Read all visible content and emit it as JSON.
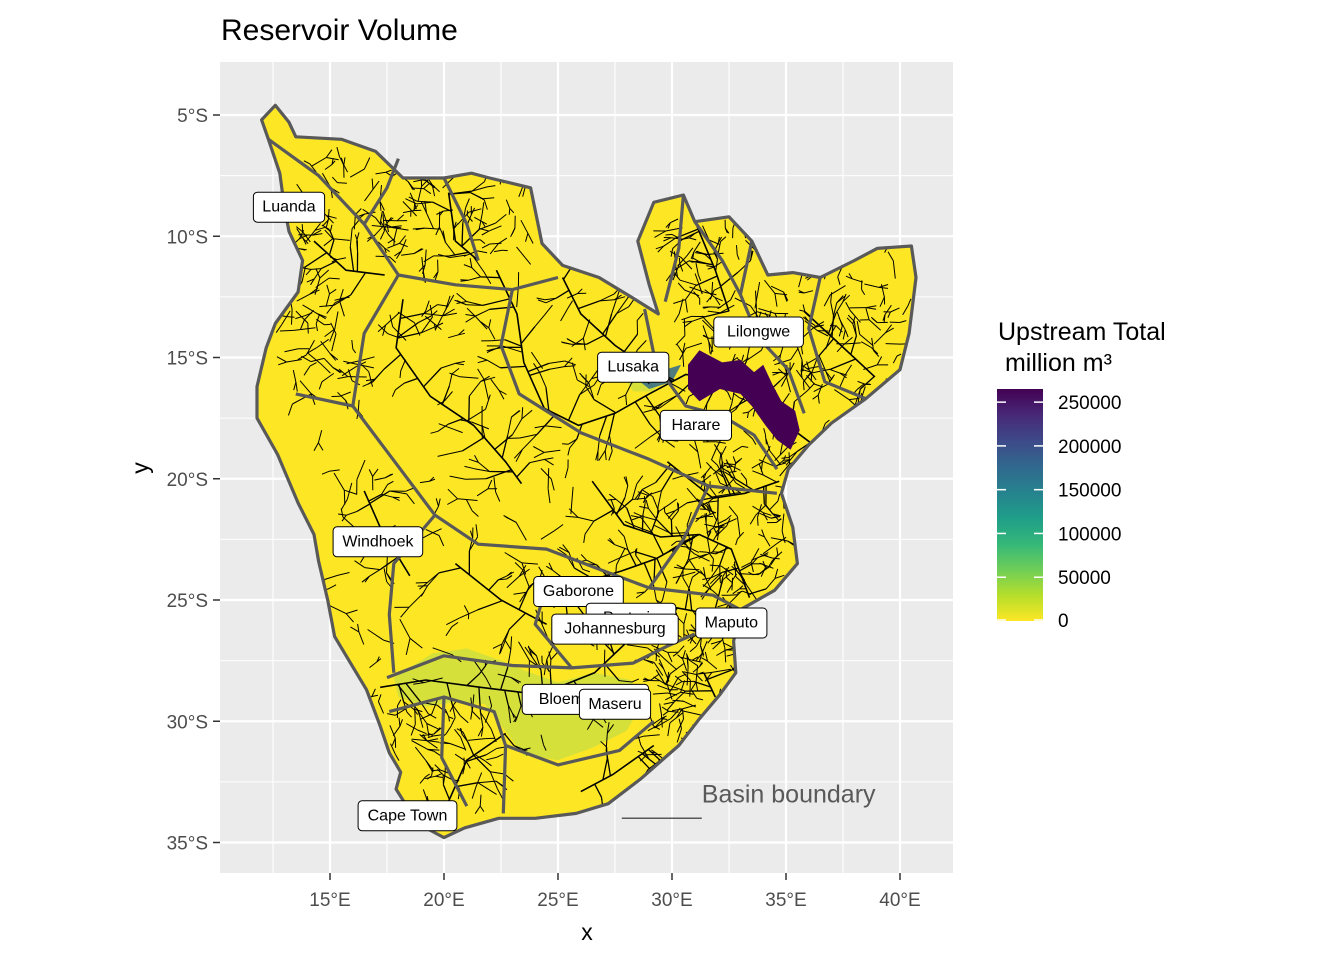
{
  "title": "Reservoir Volume",
  "axes": {
    "x_title": "x",
    "y_title": "y",
    "x_ticks": [
      {
        "lon": 15,
        "label": "15°E"
      },
      {
        "lon": 20,
        "label": "20°E"
      },
      {
        "lon": 25,
        "label": "25°E"
      },
      {
        "lon": 30,
        "label": "30°E"
      },
      {
        "lon": 35,
        "label": "35°E"
      },
      {
        "lon": 40,
        "label": "40°E"
      }
    ],
    "y_ticks": [
      {
        "lat": -5,
        "label": "5°S"
      },
      {
        "lat": -10,
        "label": "10°S"
      },
      {
        "lat": -15,
        "label": "15°S"
      },
      {
        "lat": -20,
        "label": "20°S"
      },
      {
        "lat": -25,
        "label": "25°S"
      },
      {
        "lat": -30,
        "label": "30°S"
      },
      {
        "lat": -35,
        "label": "35°S"
      }
    ],
    "xlim": [
      10.5,
      42.2
    ],
    "ylim": [
      -36.3,
      -3.1
    ]
  },
  "colors": {
    "panel": "#EBEBEB",
    "grid": "#FFFFFF",
    "land_low": "#FDE725",
    "land_mid": "#D0DF3E",
    "basin_border": "#595959",
    "river": "#000000",
    "high_volume": "#440154",
    "mid_volume": "#31688E"
  },
  "legend": {
    "title_line1": "Upstream Total",
    "title_line2": " million m³",
    "ticks": [
      "250000",
      "200000",
      "150000",
      "100000",
      "50000",
      "0"
    ],
    "tick_values": [
      250000,
      200000,
      150000,
      100000,
      50000,
      0
    ],
    "max": 265000,
    "gradient": [
      "#FDE725",
      "#B5DE2B",
      "#6ECE58",
      "#35B779",
      "#1F9E89",
      "#26828E",
      "#31688E",
      "#3E4989",
      "#482878",
      "#440154"
    ]
  },
  "annotation": {
    "label": "Basin boundary",
    "lon": 27.8,
    "lat": -33.55
  },
  "cities": [
    {
      "name": "Luanda",
      "lon": 13.2,
      "lat": -8.8
    },
    {
      "name": "Lilongwe",
      "lon": 33.8,
      "lat": -13.95
    },
    {
      "name": "Lusaka",
      "lon": 28.3,
      "lat": -15.4
    },
    {
      "name": "Harare",
      "lon": 31.05,
      "lat": -17.8
    },
    {
      "name": "Windhoek",
      "lon": 17.1,
      "lat": -22.6
    },
    {
      "name": "Gaborone",
      "lon": 25.9,
      "lat": -24.65
    },
    {
      "name": "Pretoria",
      "lon": 28.2,
      "lat": -25.75
    },
    {
      "name": "Johannesburg",
      "lon": 27.5,
      "lat": -26.2
    },
    {
      "name": "Maputo",
      "lon": 32.6,
      "lat": -25.95
    },
    {
      "name": "Bloemfontein",
      "lon": 26.2,
      "lat": -29.1
    },
    {
      "name": "Maseru",
      "lon": 27.5,
      "lat": -29.3
    },
    {
      "name": "Cape Town",
      "lon": 18.4,
      "lat": -33.9
    }
  ]
}
